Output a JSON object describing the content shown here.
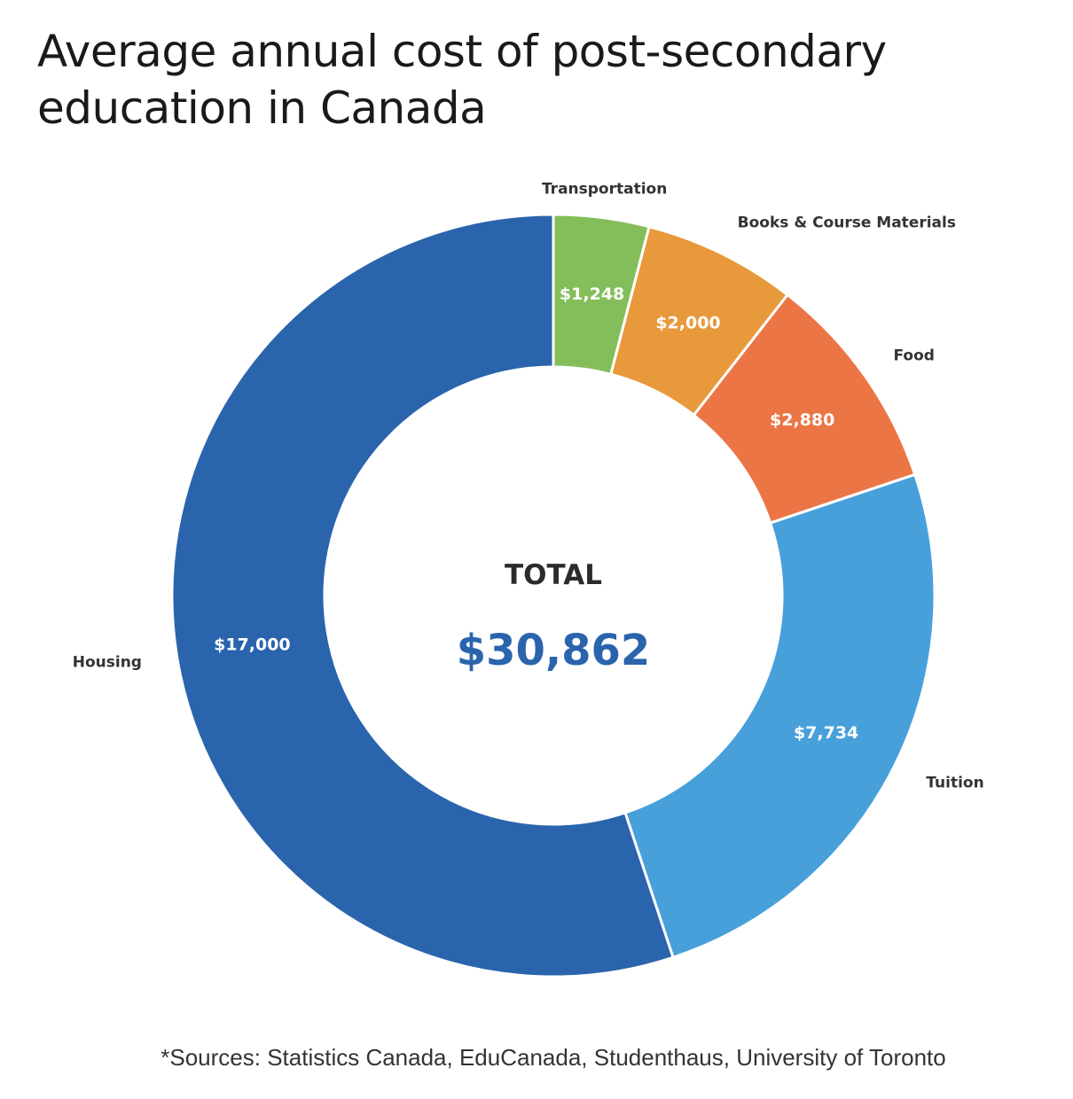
{
  "title": "Average annual cost of post-secondary education in Canada",
  "source_note": "*Sources: Statistics Canada, EduCanada, Studenthaus, University of Toronto",
  "chart_data": {
    "type": "pie",
    "variant": "donut",
    "title": "Average annual cost of post-secondary education in Canada",
    "center_label": "TOTAL",
    "center_value": "$30,862",
    "slices": [
      {
        "name": "Transportation",
        "value": 1248,
        "label": "$1,248",
        "color": "#84be5a"
      },
      {
        "name": "Books & Course Materials",
        "value": 2000,
        "label": "$2,000",
        "color": "#e8993c"
      },
      {
        "name": "Food",
        "value": 2880,
        "label": "$2,880",
        "color": "#ec7546"
      },
      {
        "name": "Tuition",
        "value": 7734,
        "label": "$7,734",
        "color": "#48a0da"
      },
      {
        "name": "Housing",
        "value": 17000,
        "label": "$17,000",
        "color": "#2a64ad"
      }
    ]
  }
}
